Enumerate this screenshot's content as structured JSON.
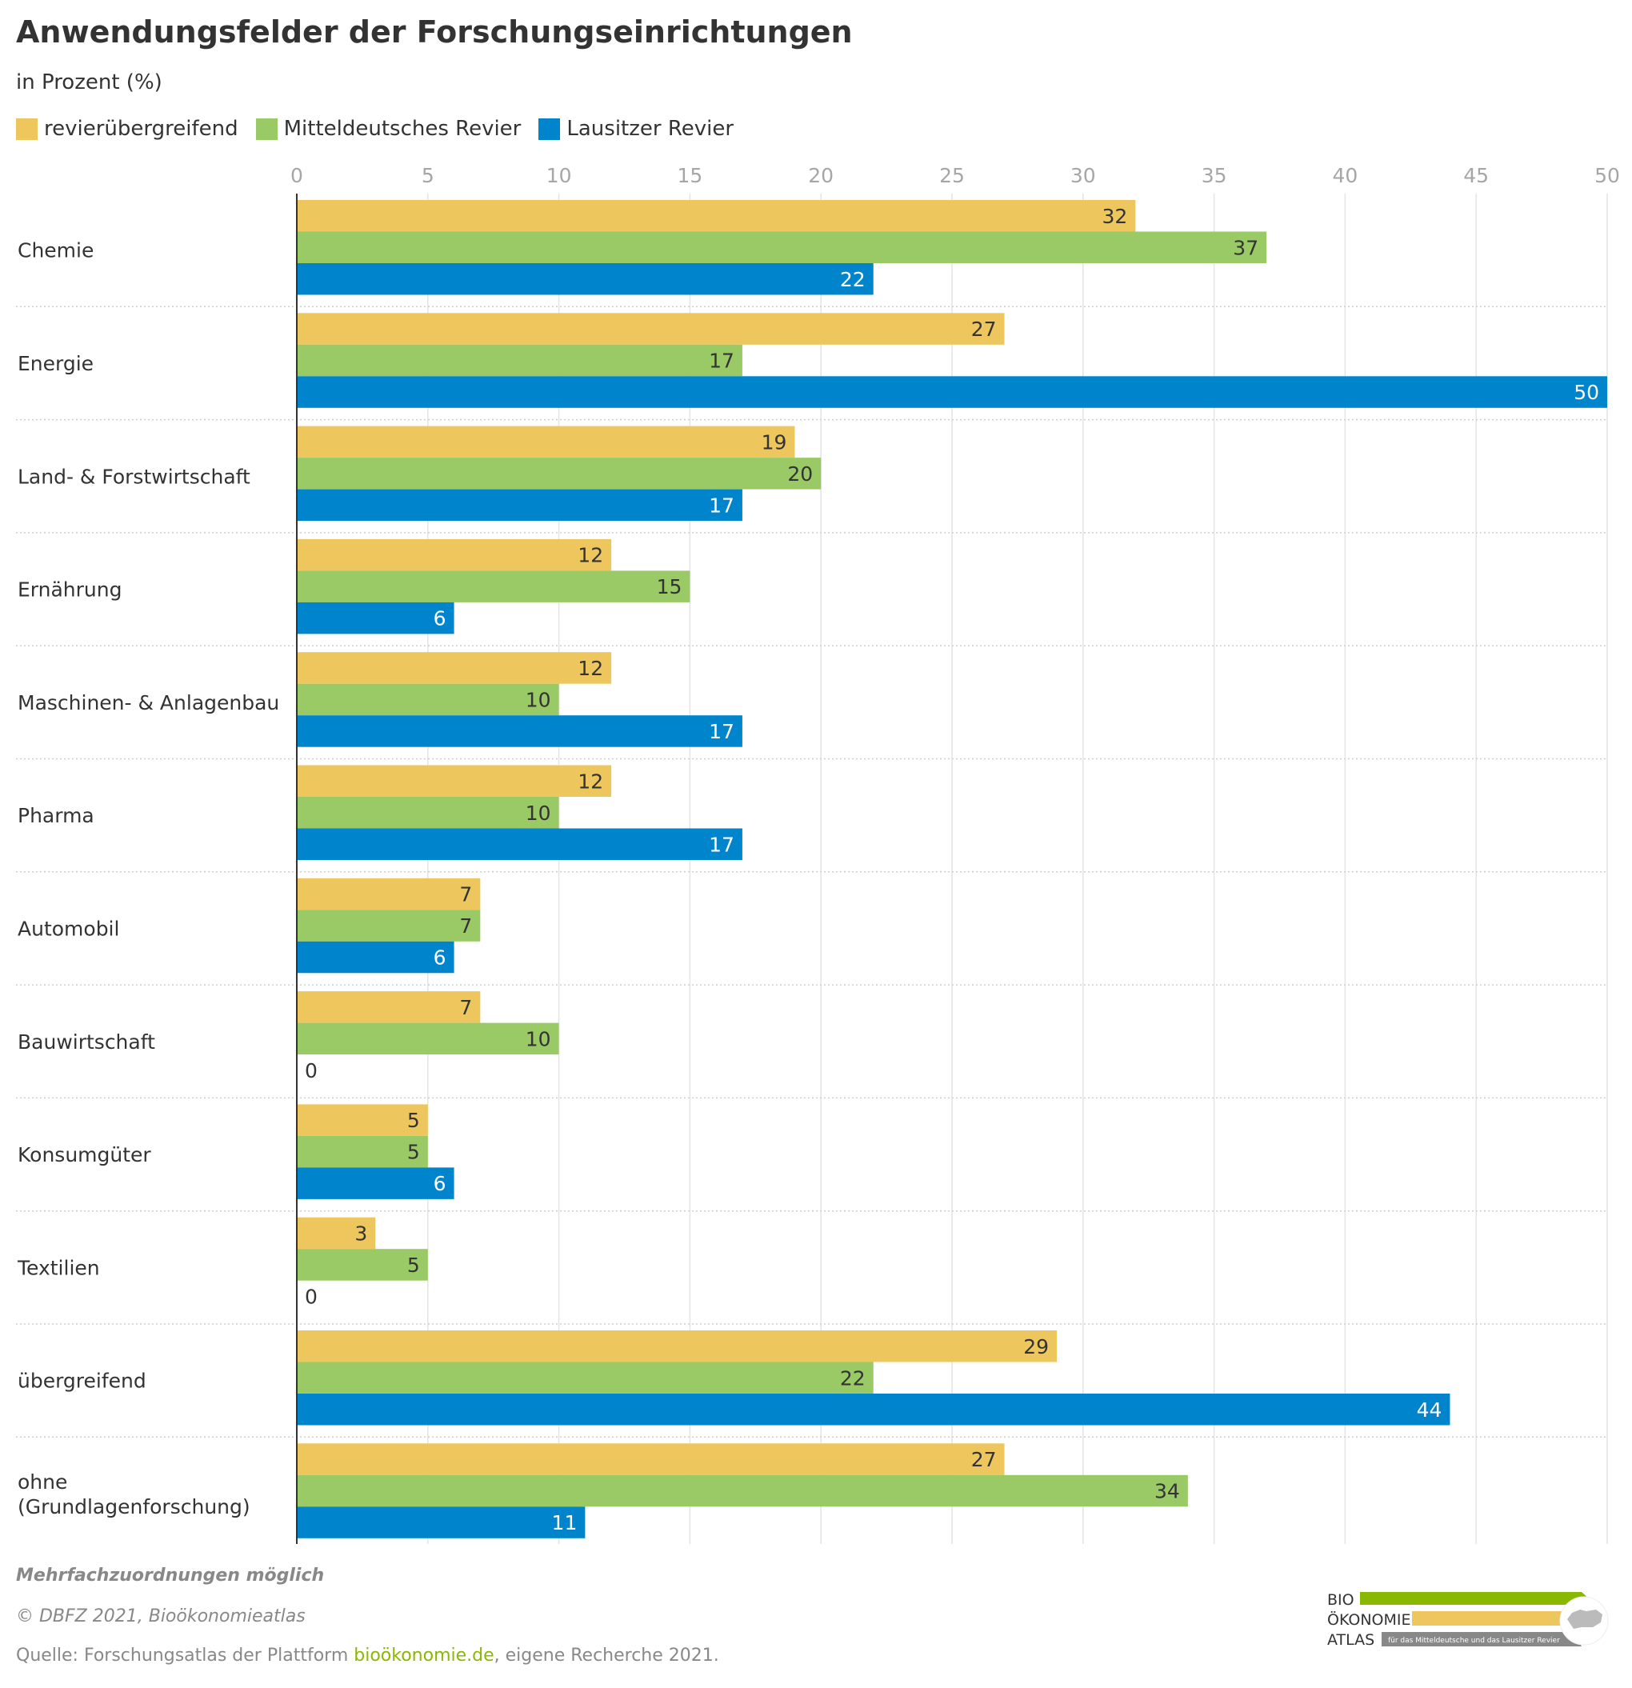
{
  "chart_data": {
    "type": "bar",
    "orientation": "horizontal",
    "title": "Anwendungsfelder der Forschungseinrichtungen",
    "subtitle": "in Prozent (%)",
    "categories": [
      "Chemie",
      "Energie",
      "Land- & Forstwirtschaft",
      "Ernährung",
      "Maschinen- & Anlagenbau",
      "Pharma",
      "Automobil",
      "Bauwirtschaft",
      "Konsumgüter",
      "Textilien",
      "übergreifend",
      "ohne (Grundlagenforschung)"
    ],
    "series": [
      {
        "name": "revierübergreifend",
        "color": "#EDC75E",
        "values": [
          32,
          27,
          19,
          12,
          12,
          12,
          7,
          7,
          5,
          3,
          29,
          27
        ]
      },
      {
        "name": "Mitteldeutsches Revier",
        "color": "#9ACA65",
        "values": [
          37,
          17,
          20,
          15,
          10,
          10,
          7,
          10,
          5,
          5,
          22,
          34
        ]
      },
      {
        "name": "Lausitzer Revier",
        "color": "#0085CC",
        "values": [
          22,
          50,
          17,
          6,
          17,
          17,
          6,
          0,
          6,
          0,
          44,
          11
        ]
      }
    ],
    "xlim": [
      0,
      50
    ],
    "xticks": [
      0,
      5,
      10,
      15,
      20,
      25,
      30,
      35,
      40,
      45,
      50
    ],
    "grid": true,
    "legend_position": "top-left",
    "data_labels": true
  },
  "footer": {
    "note": "Mehrfachzuordnungen möglich",
    "copyright": "© DBFZ 2021, Bioökonomieatlas",
    "source_prefix": "Quelle: Forschungsatlas der Plattform ",
    "source_link": "bioökonomie.de",
    "source_suffix": ", eigene Recherche 2021."
  },
  "logo": {
    "line1": "BIO",
    "line2": "ÖKONOMIE",
    "line3": "ATLAS",
    "tagline": "für das Mitteldeutsche und das Lausitzer Revier",
    "green": "#8ab800",
    "yellow": "#EDC75E",
    "gray": "#888888"
  }
}
